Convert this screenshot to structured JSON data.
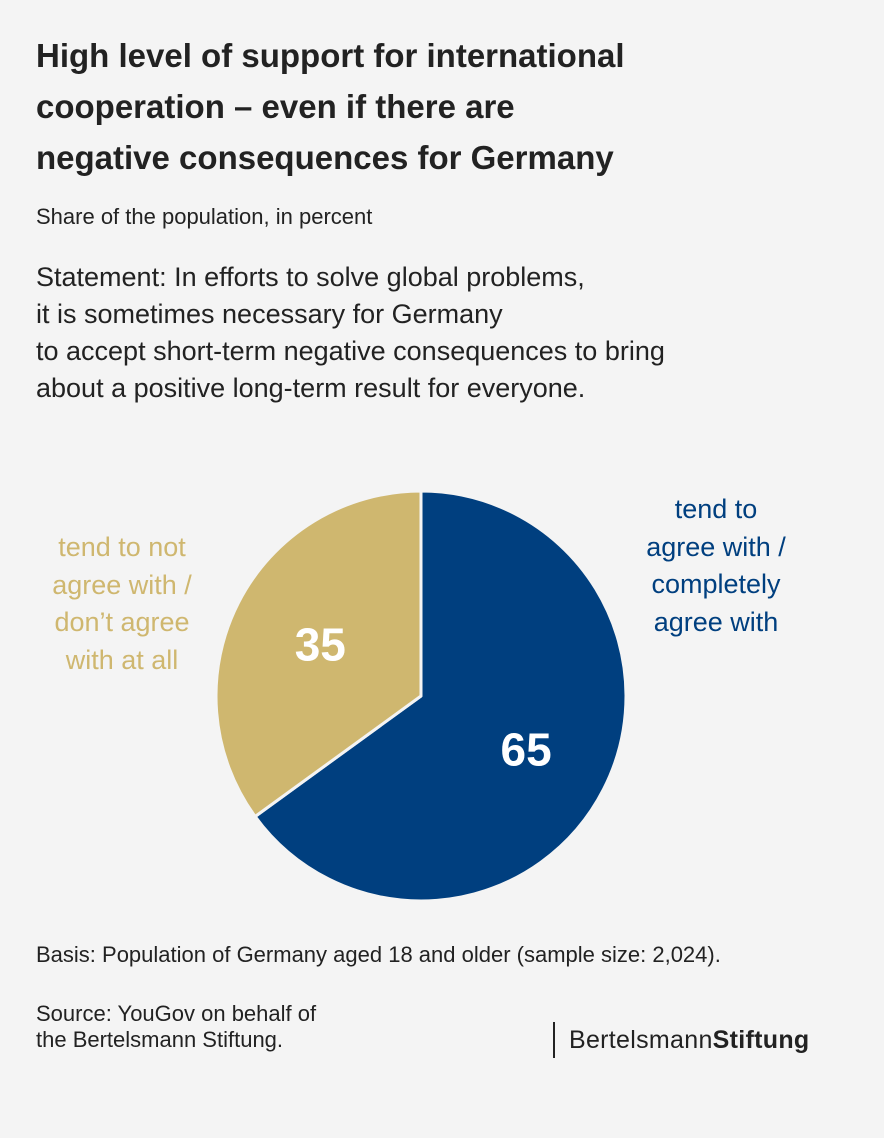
{
  "title_lines": [
    "High level of support for international",
    "cooperation – even if there are",
    "negative consequences for Germany"
  ],
  "subtitle": "Share of the population, in percent",
  "statement_lines": [
    "Statement: In efforts to solve global problems,",
    "it is sometimes necessary for Germany",
    "to accept short-term negative consequences to bring",
    "about a positive long-term result for everyone."
  ],
  "colors": {
    "agree": "#003f7f",
    "disagree": "#cfb76f",
    "background": "#f4f4f4",
    "text": "#222222"
  },
  "chart_data": {
    "type": "pie",
    "start_angle": "12 o'clock",
    "direction": "clockwise",
    "categories": [
      "tend to agree with / completely agree with",
      "tend to not agree with / don’t agree with at all"
    ],
    "values": [
      65,
      35
    ],
    "data_labels": [
      "65",
      "35"
    ],
    "legend": [
      {
        "lines": [
          "tend to",
          "agree with /",
          "completely",
          "agree with"
        ],
        "color": "#003f7f",
        "placement": "right"
      },
      {
        "lines": [
          "tend to not",
          "agree with /",
          "don’t agree",
          "with at all"
        ],
        "color": "#cfb76f",
        "placement": "left"
      }
    ]
  },
  "footer": {
    "basis": "Basis: Population of Germany aged 18 and older (sample size: 2,024).",
    "source_lines": [
      "Source: YouGov on behalf of",
      "the Bertelsmann Stiftung."
    ]
  },
  "logo": {
    "text_regular": "Bertelsmann",
    "text_bold": "Stiftung"
  }
}
